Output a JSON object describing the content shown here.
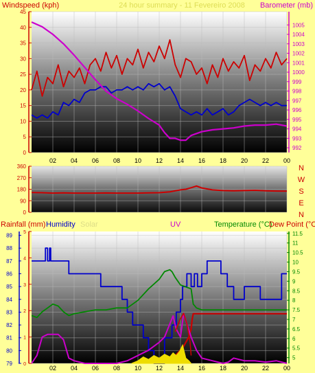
{
  "colors": {
    "background": "#ffff99",
    "windspeed_label": "#cc0000",
    "barometer_label": "#cc00cc",
    "title": "#dddd55",
    "rain": "#cc0000",
    "humidity": "#0000cc",
    "solar": "#dddd88",
    "uv": "#cc00cc",
    "temperature": "#008800",
    "dew_point": "#cc0000",
    "compass": "#cc0000"
  },
  "chart_data": [
    {
      "name": "wind-and-pressure",
      "type": "line",
      "title": "24 hour summary - 11 Fevereiro 2008",
      "left_axis_label": "Windspeed (kph)",
      "right_axis_label": "Barometer (mb)",
      "x_ticks": [
        "02",
        "04",
        "06",
        "08",
        "10",
        "12",
        "14",
        "16",
        "18",
        "20",
        "22",
        "00"
      ],
      "xlim": [
        0,
        24
      ],
      "left_ylim": [
        0,
        45
      ],
      "left_ticks": [
        "0",
        "5",
        "10",
        "15",
        "20",
        "25",
        "30",
        "35",
        "40",
        "45"
      ],
      "right_ylim": [
        991.5,
        1006.4
      ],
      "right_ticks": [
        "992",
        "993",
        "994",
        "995",
        "996",
        "997",
        "998",
        "999",
        "1000",
        "1001",
        "1002",
        "1003",
        "1004",
        "1005"
      ],
      "series": [
        {
          "role": "gust",
          "axis": "left",
          "x": [
            0,
            0.5,
            1,
            1.5,
            2,
            2.5,
            3,
            3.5,
            4,
            4.5,
            5,
            5.5,
            6,
            6.5,
            7,
            7.5,
            8,
            8.5,
            9,
            9.5,
            10,
            10.5,
            11,
            11.5,
            12,
            12.5,
            13,
            13.5,
            14,
            14.5,
            15,
            15.5,
            16,
            16.5,
            17,
            17.5,
            18,
            18.5,
            19,
            19.5,
            20,
            20.5,
            21,
            21.5,
            22,
            22.5,
            23,
            23.5,
            24
          ],
          "y": [
            20,
            26,
            18,
            24,
            22,
            28,
            21,
            26,
            24,
            27,
            22,
            28,
            30,
            26,
            32,
            27,
            31,
            25,
            30,
            28,
            33,
            27,
            32,
            29,
            34,
            30,
            36,
            28,
            24,
            30,
            29,
            25,
            27,
            22,
            28,
            24,
            30,
            26,
            29,
            27,
            31,
            23,
            28,
            26,
            30,
            27,
            32,
            28,
            30
          ]
        },
        {
          "role": "average",
          "axis": "left",
          "x": [
            0,
            0.5,
            1,
            1.5,
            2,
            2.5,
            3,
            3.5,
            4,
            4.5,
            5,
            5.5,
            6,
            6.5,
            7,
            7.5,
            8,
            8.5,
            9,
            9.5,
            10,
            10.5,
            11,
            11.5,
            12,
            12.5,
            13,
            13.5,
            14,
            14.5,
            15,
            15.5,
            16,
            16.5,
            17,
            17.5,
            18,
            18.5,
            19,
            19.5,
            20,
            20.5,
            21,
            21.5,
            22,
            22.5,
            23,
            23.5,
            24
          ],
          "y": [
            12,
            11,
            12,
            11,
            13,
            12,
            16,
            15,
            17,
            16,
            19,
            20,
            20,
            21,
            21,
            19,
            20,
            20,
            21,
            20,
            21,
            20,
            22,
            21,
            22,
            20,
            21,
            18,
            14,
            13,
            12,
            13,
            12,
            14,
            12,
            13,
            14,
            12,
            13,
            15,
            16,
            17,
            16,
            15,
            16,
            15,
            16,
            15,
            15
          ]
        },
        {
          "role": "pressure",
          "axis": "right",
          "x": [
            0,
            1,
            2,
            3,
            4,
            5,
            6,
            7,
            8,
            9,
            10,
            11,
            12,
            12.5,
            13,
            13.5,
            14,
            14.5,
            15,
            16,
            17,
            18,
            19,
            20,
            21,
            22,
            23,
            24
          ],
          "y": [
            1005.3,
            1004.8,
            1004.0,
            1003.0,
            1001.8,
            1000.5,
            999.2,
            998.0,
            997.2,
            996.6,
            995.9,
            995.1,
            994.4,
            993.6,
            993.0,
            993.0,
            992.8,
            992.8,
            993.3,
            993.7,
            993.9,
            994.0,
            994.1,
            994.3,
            994.4,
            994.4,
            994.5,
            994.3
          ]
        }
      ]
    },
    {
      "name": "wind-direction",
      "type": "line",
      "left_ylim": [
        0,
        360
      ],
      "left_ticks": [
        "0",
        "90",
        "180",
        "270",
        "360"
      ],
      "compass_letters": [
        "N",
        "W",
        "S",
        "E",
        "N"
      ],
      "series": [
        {
          "role": "direction",
          "axis": "left",
          "x": [
            0,
            1,
            2,
            3,
            4,
            5,
            6,
            7,
            8,
            9,
            10,
            11,
            12,
            13,
            14,
            14.5,
            15,
            15.5,
            16,
            17,
            18,
            19,
            20,
            21,
            22,
            23,
            24
          ],
          "y": [
            155,
            153,
            150,
            152,
            150,
            150,
            150,
            151,
            150,
            150,
            150,
            152,
            153,
            160,
            175,
            180,
            192,
            205,
            190,
            175,
            170,
            168,
            170,
            172,
            168,
            166,
            165
          ]
        }
      ]
    },
    {
      "name": "climate",
      "type": "line",
      "labels": {
        "rainfall": "Rainfall (mm)",
        "humidity": "Humidity",
        "solar": "Solar",
        "uv": "UV",
        "temperature": "Temperature (°C)",
        "dew_point": "Dew Point (°C)"
      },
      "x_ticks": [
        "02",
        "04",
        "06",
        "08",
        "10",
        "12",
        "14",
        "16",
        "18",
        "20",
        "22",
        "00"
      ],
      "rain_ticks": [
        "0",
        "1",
        "2",
        "3",
        "4",
        "5"
      ],
      "rain_ylim": [
        0,
        5
      ],
      "humidity_ticks": [
        "79",
        "80",
        "81",
        "82",
        "83",
        "84",
        "85",
        "86",
        "87",
        "88",
        "89"
      ],
      "humidity_ylim": [
        79,
        89.3
      ],
      "temp_ticks": [
        "5",
        "5.5",
        "6",
        "6.5",
        "7",
        "7.5",
        "8",
        "8.5",
        "9",
        "9.5",
        "10",
        "10.5",
        "11",
        "11.5"
      ],
      "temp_ylim": [
        4.7,
        11.6
      ],
      "series": [
        {
          "role": "humidity",
          "axis": "humidity",
          "x": [
            0,
            1.3,
            1.3,
            1.5,
            1.5,
            1.7,
            1.7,
            1.8,
            1.8,
            3.5,
            3.5,
            6.5,
            6.5,
            8.5,
            8.5,
            9,
            9,
            9.5,
            9.5,
            10.5,
            10.5,
            11,
            11,
            11.5,
            11.5,
            12.5,
            12.5,
            13.2,
            13.2,
            13.6,
            13.6,
            14,
            14,
            14.2,
            14.2,
            14.6,
            14.6,
            15,
            15,
            15.3,
            15.3,
            15.6,
            15.6,
            16,
            16,
            16.5,
            16.5,
            17.8,
            17.8,
            18.4,
            18.4,
            19,
            19,
            20,
            20,
            21.5,
            21.5,
            23.5,
            23.5,
            24
          ],
          "y": [
            87,
            87,
            88,
            88,
            87,
            87,
            88,
            88,
            87,
            87,
            86,
            86,
            85,
            85,
            84,
            84,
            83,
            83,
            82,
            82,
            81,
            81,
            80,
            80,
            79,
            79,
            81,
            81,
            82,
            82,
            83,
            83,
            84,
            84,
            85,
            85,
            86,
            86,
            85,
            85,
            86,
            86,
            85,
            85,
            86,
            86,
            87,
            87,
            86,
            86,
            85,
            85,
            84,
            84,
            85,
            85,
            84,
            84,
            86,
            86
          ]
        },
        {
          "role": "temperature",
          "axis": "temp",
          "x": [
            0,
            0.5,
            1,
            1.5,
            2,
            2.5,
            3,
            3.5,
            4,
            5,
            6,
            7,
            8,
            9,
            10,
            11,
            12,
            12.5,
            13,
            13.2,
            13.5,
            14,
            14.5,
            15,
            15.2,
            15.5,
            16,
            17,
            18,
            19,
            20,
            21,
            22,
            23,
            24
          ],
          "y": [
            7.2,
            7.1,
            7.4,
            7.6,
            7.8,
            7.7,
            7.4,
            7.2,
            7.3,
            7.4,
            7.5,
            7.5,
            7.6,
            7.6,
            8.0,
            8.6,
            9.1,
            9.5,
            9.6,
            9.5,
            9.2,
            8.8,
            8.7,
            8.6,
            7.8,
            7.6,
            7.5,
            7.5,
            7.5,
            7.5,
            7.5,
            7.5,
            7.5,
            7.5,
            7.5
          ]
        },
        {
          "role": "dew-point",
          "axis": "temp",
          "x": [
            13,
            13.5,
            14,
            14.3,
            14.6,
            14.8,
            15,
            15.1,
            15.2,
            16,
            17,
            18,
            19,
            20,
            21,
            22,
            23,
            24
          ],
          "y": [
            5.0,
            5.1,
            5.4,
            5.6,
            5.9,
            6.1,
            6.5,
            7.0,
            7.3,
            7.3,
            7.3,
            7.3,
            7.3,
            7.3,
            7.3,
            7.3,
            7.3,
            7.3
          ]
        },
        {
          "role": "uv",
          "axis": "rain",
          "x": [
            0,
            0.5,
            1,
            1.5,
            2,
            2.5,
            3,
            3.5,
            4,
            5,
            6,
            7,
            8,
            9,
            10,
            11,
            12,
            12.5,
            13,
            13.3,
            13.6,
            14,
            14.3,
            14.6,
            15,
            15.5,
            16,
            17,
            18,
            18.5,
            19,
            20,
            21,
            22,
            23,
            24
          ],
          "y": [
            0,
            0.3,
            1.0,
            1.1,
            1.1,
            1.1,
            0.9,
            0.2,
            0.1,
            0,
            0,
            0,
            0,
            0.1,
            0.3,
            0.5,
            0.8,
            1.0,
            1.5,
            1.8,
            1.3,
            1.0,
            1.9,
            1.5,
            1.0,
            0.5,
            0.2,
            0.1,
            0,
            0.05,
            0.2,
            0.1,
            0.1,
            0.05,
            0.1,
            0
          ]
        },
        {
          "role": "solar",
          "axis": "rain",
          "x": [
            9.4,
            10,
            10.5,
            11,
            11.5,
            12,
            12.5,
            13,
            13.3,
            13.6,
            13.9,
            14.2,
            14.5,
            14.8,
            15
          ],
          "y": [
            0,
            0.1,
            0.25,
            0.15,
            0.3,
            0.2,
            0.35,
            0.25,
            0.4,
            0.3,
            0.45,
            0.7,
            0.2,
            0.1,
            0
          ]
        },
        {
          "role": "rain-gust",
          "axis": "rain",
          "x": [
            13.5,
            14,
            14.3,
            14.6,
            14.9,
            15
          ],
          "y": [
            1.2,
            1.7,
            1.9,
            1.5,
            0.8,
            0.3
          ]
        }
      ]
    }
  ]
}
